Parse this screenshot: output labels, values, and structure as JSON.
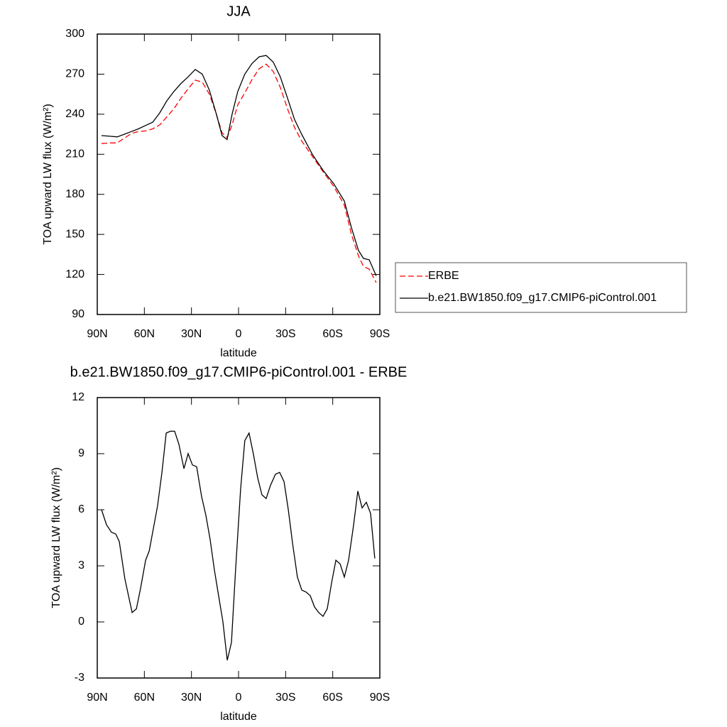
{
  "chart_data": [
    {
      "type": "line",
      "title": "JJA",
      "xlabel": "latitude",
      "ylabel": "TOA upward LW flux (W/m²)",
      "x": [
        87.3,
        81.9,
        77.3,
        72.8,
        68.3,
        63.8,
        59.3,
        54.7,
        50.2,
        45.7,
        41.2,
        36.7,
        32.1,
        27.6,
        23.1,
        18.6,
        14.1,
        10.5,
        7.3,
        4.1,
        0.5,
        -4.0,
        -8.6,
        -13.1,
        -17.6,
        -22.1,
        -26.6,
        -31.2,
        -35.7,
        -40.2,
        -47.0,
        -53.8,
        -60.6,
        -67.4,
        -71.9,
        -76.4,
        -79.6,
        -83.2,
        -87.7
      ],
      "series": [
        {
          "name": "ERBE",
          "color": "#ff0000",
          "dashed": true,
          "values": [
            218,
            218.5,
            218.5,
            222,
            225.5,
            227,
            227.5,
            229,
            232,
            238,
            244,
            252,
            259,
            265.5,
            264,
            255,
            240,
            226,
            222.5,
            232,
            247,
            256,
            266,
            274,
            277.5,
            272,
            260,
            244,
            230,
            220,
            208.5,
            197,
            186,
            172,
            150,
            134,
            126,
            124,
            114
          ]
        },
        {
          "name": "b.e21.BW1850.f09_g17.CMIP6-piControl.001",
          "color": "#000000",
          "dashed": false,
          "values": [
            224,
            223.5,
            223,
            225,
            227,
            229,
            231.5,
            234,
            241,
            250,
            257,
            263,
            268,
            273.5,
            270,
            258,
            240,
            224,
            221,
            240,
            257,
            270,
            278,
            283,
            284,
            279,
            268,
            252,
            236,
            225,
            210,
            198,
            188,
            175,
            155,
            138,
            132,
            131,
            119
          ]
        }
      ],
      "xlim": [
        90,
        -90
      ],
      "xticks": [
        {
          "value": 90,
          "label": "90N"
        },
        {
          "value": 60,
          "label": "60N"
        },
        {
          "value": 30,
          "label": "30N"
        },
        0,
        {
          "value": -30,
          "label": "30S"
        },
        {
          "value": -60,
          "label": "60S"
        },
        {
          "value": -90,
          "label": "90S"
        }
      ],
      "ylim": [
        90,
        300
      ],
      "yticks": [
        90,
        120,
        150,
        180,
        210,
        240,
        270,
        300
      ],
      "legend": "right"
    },
    {
      "type": "line",
      "title": "b.e21.BW1850.f09_g17.CMIP6-piControl.001 - ERBE",
      "xlabel": "latitude",
      "ylabel": "TOA upward LW flux (W/m²)",
      "x": [
        87.3,
        84.1,
        81.0,
        78.2,
        76.0,
        72.4,
        67.8,
        65.1,
        62.4,
        59.2,
        56.9,
        51.6,
        48.8,
        46.1,
        43.4,
        40.7,
        38.0,
        34.8,
        32.1,
        29.4,
        26.7,
        23.5,
        20.8,
        18.1,
        15.4,
        12.7,
        10.0,
        7.2,
        4.5,
        1.8,
        -1.3,
        -4.0,
        -6.7,
        -9.4,
        -12.2,
        -14.9,
        -17.6,
        -20.3,
        -23.5,
        -26.2,
        -29.0,
        -31.7,
        -34.4,
        -37.5,
        -40.3,
        -43.0,
        -45.7,
        -48.4,
        -51.1,
        -53.8,
        -56.5,
        -59.3,
        -62.0,
        -64.7,
        -67.4,
        -70.1,
        -73.3,
        -76.0,
        -78.7,
        -81.4,
        -84.1,
        -86.8
      ],
      "values": [
        6.0,
        5.2,
        4.8,
        4.7,
        4.3,
        2.3,
        0.5,
        0.7,
        1.8,
        3.3,
        3.8,
        6.2,
        8.0,
        10.1,
        10.2,
        10.2,
        9.5,
        8.2,
        9.0,
        8.4,
        8.3,
        6.7,
        5.7,
        4.4,
        2.8,
        1.4,
        0.03,
        -2.05,
        -1.1,
        2.9,
        7.1,
        9.7,
        10.1,
        9.0,
        7.7,
        6.8,
        6.6,
        7.3,
        7.9,
        8.0,
        7.5,
        6.0,
        4.2,
        2.4,
        1.7,
        1.6,
        1.4,
        0.8,
        0.5,
        0.3,
        0.7,
        2.1,
        3.3,
        3.1,
        2.4,
        3.3,
        5.2,
        7.0,
        6.1,
        6.4,
        5.8,
        3.4
      ],
      "color": "#000000",
      "xlim": [
        90,
        -90
      ],
      "xticks": [
        {
          "value": 90,
          "label": "90N"
        },
        {
          "value": 60,
          "label": "60N"
        },
        {
          "value": 30,
          "label": "30N"
        },
        0,
        {
          "value": -30,
          "label": "30S"
        },
        {
          "value": -60,
          "label": "60S"
        },
        {
          "value": -90,
          "label": "90S"
        }
      ],
      "ylim": [
        -3,
        12
      ],
      "yticks": [
        -3,
        0,
        3,
        6,
        9,
        12
      ]
    }
  ]
}
